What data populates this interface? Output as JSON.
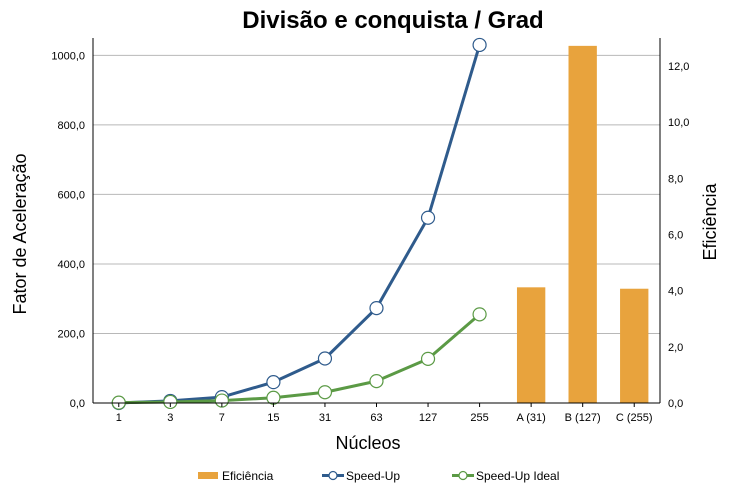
{
  "chart_data": {
    "type": "bar+line",
    "title": "Divisão e conquista / Grad",
    "xlabel": "Núcleos",
    "ylabel_left": "Fator de Aceleração",
    "ylabel_right": "Eficiência",
    "categories": [
      "1",
      "3",
      "7",
      "15",
      "31",
      "63",
      "127",
      "255",
      "A (31)",
      "B (127)",
      "C (255)"
    ],
    "y_left_range": [
      0,
      1050
    ],
    "y_left_ticks": [
      "0,0",
      "200,0",
      "400,0",
      "600,0",
      "800,0",
      "1000,0"
    ],
    "y_right_range": [
      0,
      13.0
    ],
    "y_right_ticks": [
      "0,0",
      "2,0",
      "4,0",
      "6,0",
      "8,0",
      "10,0",
      "12,0"
    ],
    "grid": "horizontal",
    "legend_position": "bottom",
    "series": [
      {
        "name": "Eficiência",
        "type": "bar",
        "axis": "right",
        "color": "#E8A33D",
        "values": [
          null,
          null,
          null,
          null,
          null,
          null,
          null,
          null,
          4.12,
          12.72,
          4.07
        ]
      },
      {
        "name": "Speed-Up",
        "type": "line",
        "axis": "left",
        "color": "#2F5B8C",
        "values": [
          0,
          6,
          17,
          60,
          128,
          273,
          533,
          1030,
          null,
          null,
          null
        ]
      },
      {
        "name": "Speed-Up Ideal",
        "type": "line",
        "axis": "left",
        "color": "#5B9A45",
        "values": [
          1,
          3,
          7,
          15,
          31,
          63,
          127,
          255,
          null,
          null,
          null
        ]
      }
    ]
  }
}
